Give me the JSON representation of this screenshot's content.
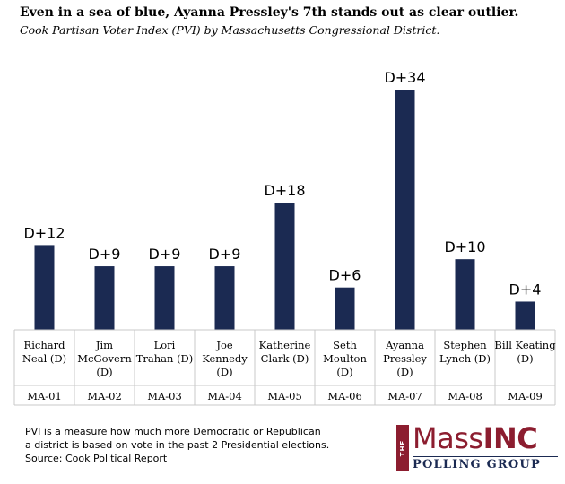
{
  "title": "Even in a sea of blue, Ayanna Pressley's 7th stands out as clear outlier.",
  "subtitle": "Cook Partisan Voter Index (PVI) by Massachusetts Congressional District.",
  "chart_data": {
    "type": "bar",
    "categories": [
      "MA-01",
      "MA-02",
      "MA-03",
      "MA-04",
      "MA-05",
      "MA-06",
      "MA-07",
      "MA-08",
      "MA-09"
    ],
    "representatives": [
      [
        "Richard",
        "Neal (D)"
      ],
      [
        "Jim",
        "McGovern",
        "(D)"
      ],
      [
        "Lori",
        "Trahan (D)"
      ],
      [
        "Joe",
        "Kennedy",
        "(D)"
      ],
      [
        "Katherine",
        "Clark (D)"
      ],
      [
        "Seth",
        "Moulton",
        "(D)"
      ],
      [
        "Ayanna",
        "Pressley",
        "(D)"
      ],
      [
        "Stephen",
        "Lynch (D)"
      ],
      [
        "Bill Keating",
        "(D)"
      ]
    ],
    "values": [
      12,
      9,
      9,
      9,
      18,
      6,
      34,
      10,
      4
    ],
    "data_labels": [
      "D+12",
      "D+9",
      "D+9",
      "D+9",
      "D+18",
      "D+6",
      "D+34",
      "D+10",
      "D+4"
    ],
    "bar_color": "#1b2a52",
    "ylim": [
      0,
      34
    ],
    "grid": false,
    "legend": "none"
  },
  "footnote": {
    "line1": "PVI is a measure how much more Democratic or Republican",
    "line2": "a district is based on vote in the past 2 Presidential  elections.",
    "line3": "Source: Cook Political Report"
  },
  "logo": {
    "the": "THE",
    "mass": "Mass",
    "inc": "INC",
    "polling": "POLLING GROUP",
    "accent_color": "#8c1d2f",
    "navy_color": "#1b2a52"
  }
}
